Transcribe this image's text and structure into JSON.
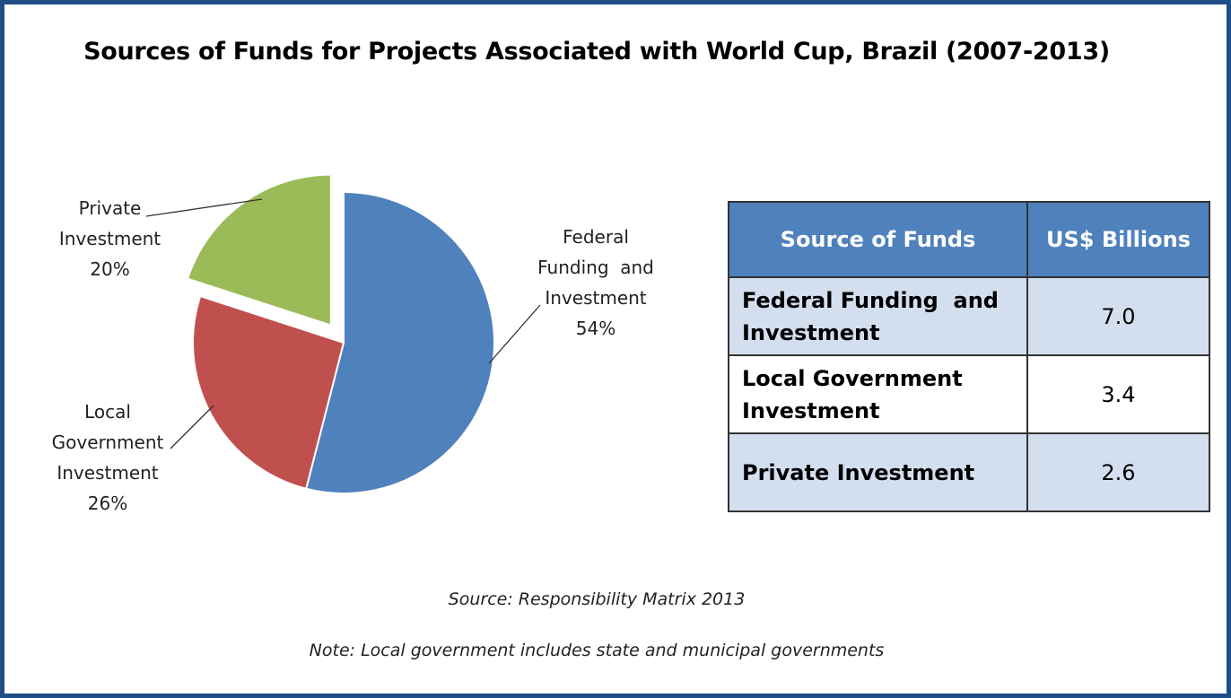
{
  "chart_data": {
    "type": "pie",
    "title": "Sources of Funds for Projects Associated with World Cup, Brazil (2007-2013)",
    "slices": [
      {
        "label": [
          "Federal",
          "Funding  and",
          "Investment"
        ],
        "percent_label": "54%",
        "value": 54,
        "color": "#4f81bd"
      },
      {
        "label": [
          "Local",
          "Government",
          "Investment"
        ],
        "percent_label": "26%",
        "value": 26,
        "color": "#c0504d"
      },
      {
        "label": [
          "Private",
          "Investment"
        ],
        "percent_label": "20%",
        "value": 20,
        "color": "#9bbb59",
        "exploded": true
      }
    ]
  },
  "table": {
    "headers": [
      "Source of Funds",
      "US$ Billions"
    ],
    "rows": [
      {
        "name": "Federal Funding  and Investment",
        "value": "7.0"
      },
      {
        "name": "Local Government Investment",
        "value": "3.4"
      },
      {
        "name": "Private Investment",
        "value": "2.6"
      }
    ]
  },
  "source": "Source: Responsibility Matrix 2013",
  "note": "Note: Local government includes state and municipal governments",
  "colors": {
    "frame": "#1f4e87",
    "header": "#4f81bd",
    "row_alt": "#d3dfee"
  }
}
